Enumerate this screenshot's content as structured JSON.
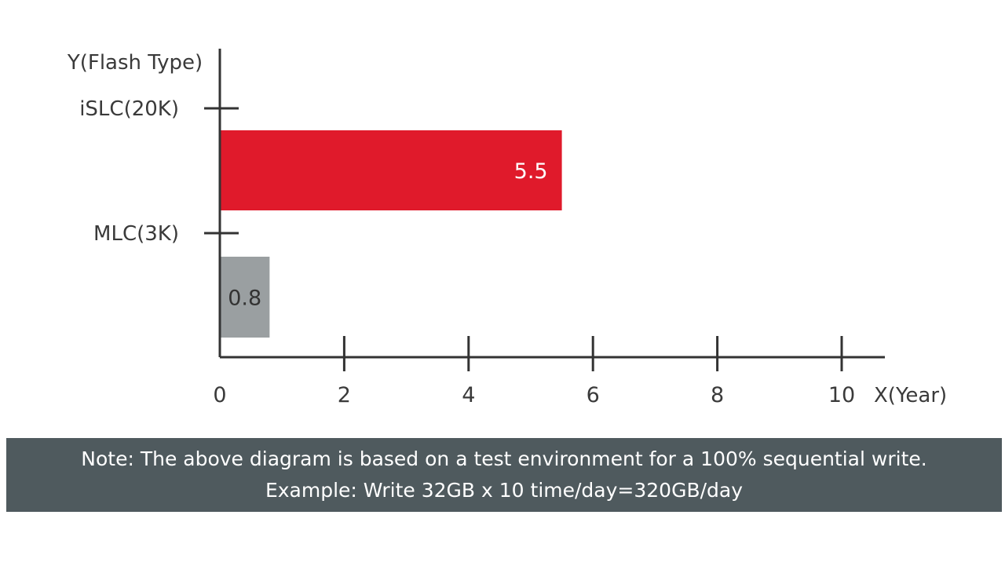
{
  "chart_data": {
    "type": "bar",
    "orientation": "horizontal",
    "ylabel": "Y(Flash Type)",
    "xlabel": "X(Year)",
    "categories": [
      "iSLC(20K)",
      "MLC(3K)"
    ],
    "values": [
      5.5,
      0.8
    ],
    "value_labels": [
      "5.5",
      "0.8"
    ],
    "bar_colors": [
      "#e01a2b",
      "#9a9fa1"
    ],
    "xlim": [
      0,
      10
    ],
    "x_ticks": [
      0,
      2,
      4,
      6,
      8,
      10
    ],
    "x_tick_labels": [
      "0",
      "2",
      "4",
      "6",
      "8",
      "10"
    ],
    "grid": false
  },
  "note": {
    "line1": "Note: The above diagram is based on a test environment for a 100% sequential write.",
    "line2": "Example: Write 32GB x 10 time/day=320GB/day"
  }
}
